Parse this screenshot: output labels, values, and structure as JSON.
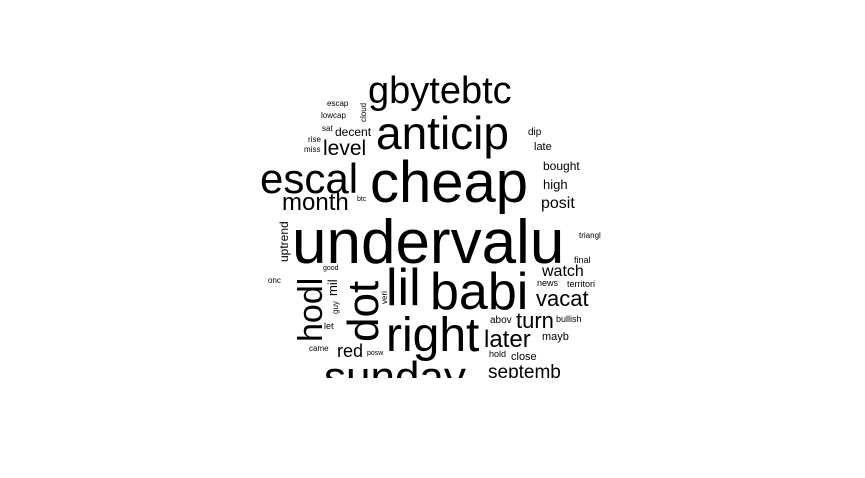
{
  "words": [
    {
      "id": "undervalu",
      "text": "undervalu"
    },
    {
      "id": "cheap",
      "text": "cheap"
    },
    {
      "id": "anticip",
      "text": "anticip"
    },
    {
      "id": "gbytebtc",
      "text": "gbytebtc"
    },
    {
      "id": "escal",
      "text": "escal"
    },
    {
      "id": "babi",
      "text": "babi"
    },
    {
      "id": "lil",
      "text": "lil"
    },
    {
      "id": "right",
      "text": "right"
    },
    {
      "id": "dot",
      "text": "dot"
    },
    {
      "id": "hodl",
      "text": "hodl"
    },
    {
      "id": "sunday",
      "text": "sunday"
    },
    {
      "id": "month",
      "text": "month"
    },
    {
      "id": "level",
      "text": "level"
    },
    {
      "id": "later",
      "text": "later"
    },
    {
      "id": "vacat",
      "text": "vacat"
    },
    {
      "id": "turn",
      "text": "turn"
    },
    {
      "id": "watch",
      "text": "watch"
    },
    {
      "id": "posit",
      "text": "posit"
    },
    {
      "id": "septemb",
      "text": "septemb"
    },
    {
      "id": "red",
      "text": "red"
    },
    {
      "id": "high",
      "text": "high"
    },
    {
      "id": "bought",
      "text": "bought"
    },
    {
      "id": "decent",
      "text": "decent"
    },
    {
      "id": "late",
      "text": "late"
    },
    {
      "id": "dip",
      "text": "dip"
    },
    {
      "id": "mil",
      "text": "mil"
    },
    {
      "id": "uptrend",
      "text": "uptrend"
    },
    {
      "id": "close",
      "text": "close"
    },
    {
      "id": "mayb",
      "text": "mayb"
    },
    {
      "id": "bullish",
      "text": "bullish"
    },
    {
      "id": "abov",
      "text": "abov"
    },
    {
      "id": "news",
      "text": "news"
    },
    {
      "id": "territori",
      "text": "territori"
    },
    {
      "id": "final",
      "text": "final"
    },
    {
      "id": "triangl",
      "text": "triangl"
    },
    {
      "id": "hold",
      "text": "hold"
    },
    {
      "id": "escap",
      "text": "escap"
    },
    {
      "id": "lowcap",
      "text": "lowcap"
    },
    {
      "id": "sat",
      "text": "sat"
    },
    {
      "id": "rise",
      "text": "rise"
    },
    {
      "id": "miss",
      "text": "miss"
    },
    {
      "id": "cloud",
      "text": "cloud"
    },
    {
      "id": "btc",
      "text": "btc"
    },
    {
      "id": "good",
      "text": "good"
    },
    {
      "id": "guy",
      "text": "guy"
    },
    {
      "id": "veri",
      "text": "veri"
    },
    {
      "id": "let",
      "text": "let"
    },
    {
      "id": "came",
      "text": "came"
    },
    {
      "id": "onc",
      "text": "onc"
    },
    {
      "id": "posw",
      "text": "posw"
    }
  ]
}
